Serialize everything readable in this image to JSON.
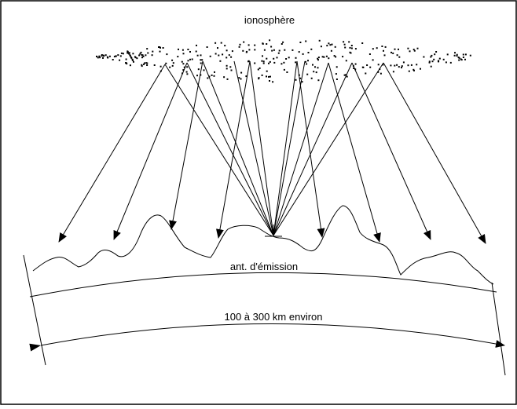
{
  "labels": {
    "ionosphere": "ionosphère",
    "antenna": "ant. d'émission",
    "distance": "100 à 300 km environ"
  }
}
